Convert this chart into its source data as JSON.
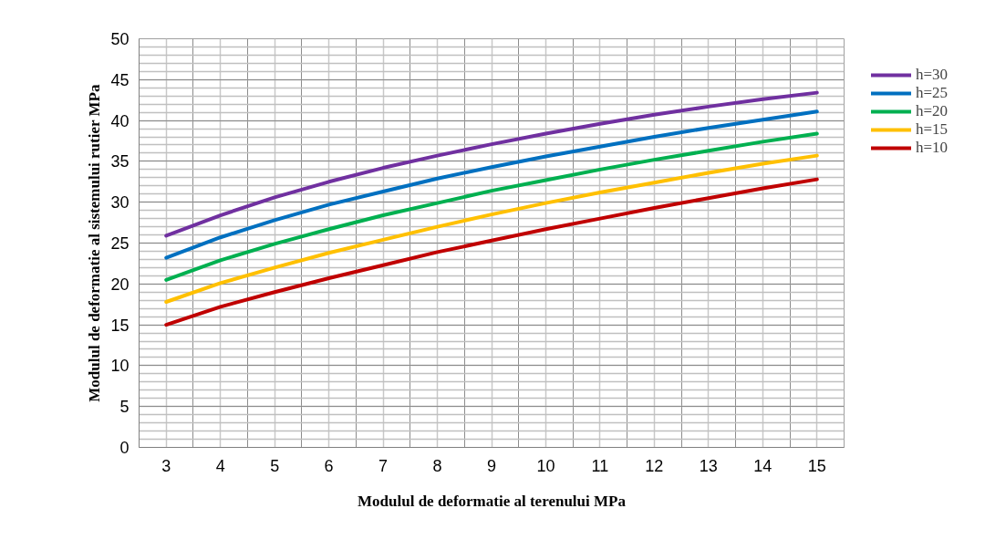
{
  "chart_data": {
    "type": "line",
    "xlabel": "Modulul de deformatie al terenului MPa",
    "ylabel": "Modulul de deformatie al sistemului rutier MPa",
    "categories": [
      "3",
      "4",
      "5",
      "6",
      "7",
      "8",
      "9",
      "10",
      "11",
      "12",
      "13",
      "14",
      "15"
    ],
    "ylim": [
      0,
      50
    ],
    "yticks": [
      0,
      5,
      10,
      15,
      20,
      25,
      30,
      35,
      40,
      45,
      50
    ],
    "grid": true,
    "legend": "right",
    "marker": "none",
    "line_style": "solid",
    "series": [
      {
        "name": "h=30",
        "color": "#7030a0",
        "values": [
          25.9,
          28.4,
          30.6,
          32.5,
          34.2,
          35.7,
          37.1,
          38.4,
          39.6,
          40.7,
          41.7,
          42.6,
          43.4
        ]
      },
      {
        "name": "h=25",
        "color": "#0070c0",
        "values": [
          23.2,
          25.7,
          27.8,
          29.7,
          31.3,
          32.9,
          34.3,
          35.6,
          36.8,
          38.0,
          39.1,
          40.1,
          41.1
        ]
      },
      {
        "name": "h=20",
        "color": "#00b050",
        "values": [
          20.5,
          22.9,
          24.9,
          26.7,
          28.4,
          29.9,
          31.4,
          32.7,
          34.0,
          35.2,
          36.3,
          37.4,
          38.4
        ]
      },
      {
        "name": "h=15",
        "color": "#ffc000",
        "values": [
          17.8,
          20.1,
          22.0,
          23.8,
          25.4,
          27.0,
          28.5,
          29.9,
          31.2,
          32.4,
          33.6,
          34.7,
          35.7
        ]
      },
      {
        "name": "h=10",
        "color": "#c00000",
        "values": [
          15.0,
          17.2,
          19.0,
          20.7,
          22.3,
          23.9,
          25.3,
          26.7,
          28.0,
          29.3,
          30.5,
          31.7,
          32.8
        ]
      }
    ]
  }
}
